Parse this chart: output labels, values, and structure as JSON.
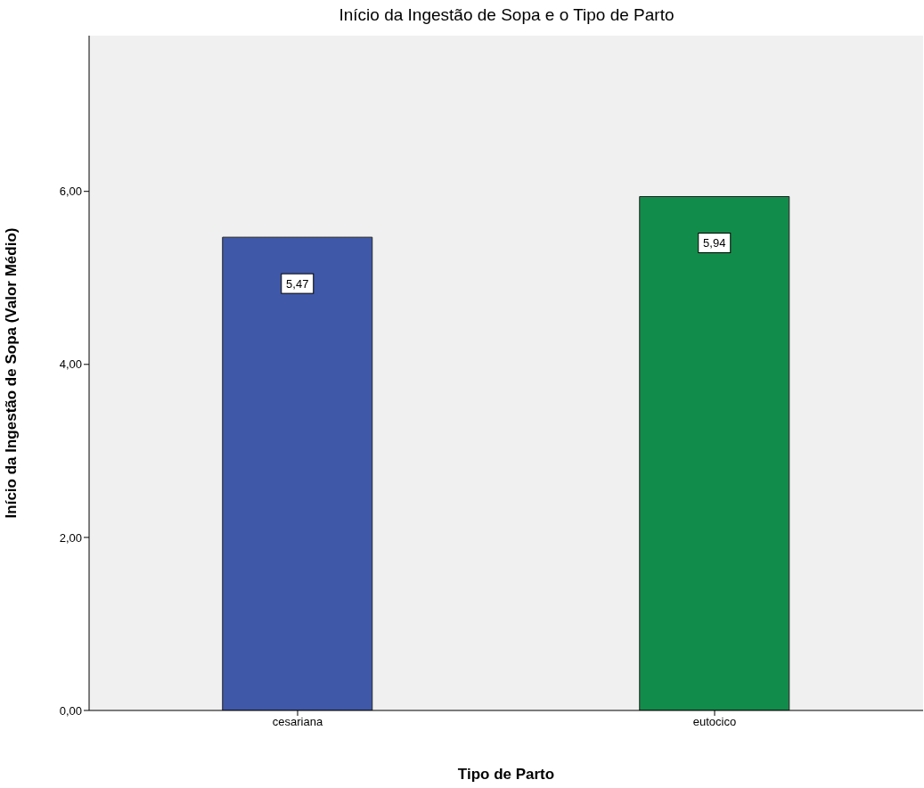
{
  "chart_data": {
    "type": "bar",
    "title": "Início da Ingestão de Sopa e o Tipo de Parto",
    "xlabel": "Tipo de Parto",
    "ylabel": "Início da Ingestão de Sopa (Valor Médio)",
    "categories": [
      "cesariana",
      "eutocico"
    ],
    "values": [
      5.47,
      5.94
    ],
    "colors": [
      "#3f58a8",
      "#128c4a"
    ],
    "value_labels": [
      "5,47",
      "5,94"
    ],
    "ylim": [
      0,
      7.8
    ],
    "yticks": [
      {
        "value": 0,
        "label": "0,00"
      },
      {
        "value": 2,
        "label": "2,00"
      },
      {
        "value": 4,
        "label": "4,00"
      },
      {
        "value": 6,
        "label": "6,00"
      }
    ]
  }
}
